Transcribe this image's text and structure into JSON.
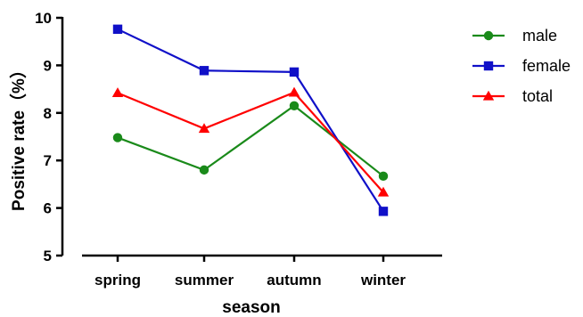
{
  "chart_data": {
    "type": "line",
    "title": "",
    "xlabel": "season",
    "ylabel": "Positive rate（%）",
    "categories": [
      "spring",
      "summer",
      "autumn",
      "winter"
    ],
    "ylim": [
      5,
      10
    ],
    "yticks": [
      "5",
      "6",
      "7",
      "8",
      "9",
      "10"
    ],
    "grid": false,
    "legend_position": "top-right",
    "series": [
      {
        "name": "male",
        "values": [
          7.48,
          6.8,
          8.15,
          6.67
        ],
        "color": "#1a8a1a",
        "marker": "circle"
      },
      {
        "name": "female",
        "values": [
          9.76,
          8.89,
          8.86,
          5.93
        ],
        "color": "#1010c8",
        "marker": "square"
      },
      {
        "name": "total",
        "values": [
          8.42,
          7.67,
          8.43,
          6.33
        ],
        "color": "#ff0000",
        "marker": "triangle"
      }
    ]
  }
}
